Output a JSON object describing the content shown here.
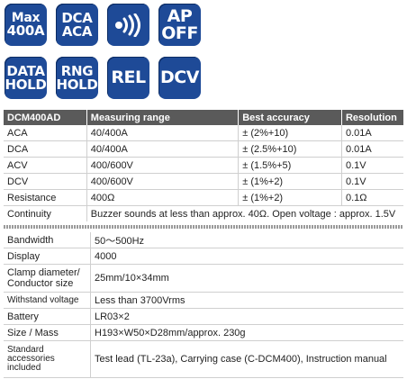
{
  "badges": [
    {
      "lines": [
        "Max",
        "400A"
      ],
      "style": "mixed"
    },
    {
      "lines": [
        "DCA",
        "ACA"
      ],
      "style": "normal"
    },
    {
      "icon": "sound-waves-icon"
    },
    {
      "lines": [
        "AP",
        "OFF"
      ],
      "style": "big"
    },
    {
      "lines": [
        "DATA",
        "HOLD"
      ],
      "style": "normal"
    },
    {
      "lines": [
        "RNG",
        "HOLD"
      ],
      "style": "normal"
    },
    {
      "lines": [
        "REL"
      ],
      "style": "big"
    },
    {
      "lines": [
        "DCV"
      ],
      "style": "big"
    }
  ],
  "colors": {
    "badge_bg": "#1e4a97",
    "header_bg": "#5a5a5a"
  },
  "spec_table": {
    "headers": [
      "DCM400AD",
      "Measuring range",
      "Best accuracy",
      "Resolution"
    ],
    "rows": [
      [
        "ACA",
        "40/400A",
        "± (2%+10)",
        "0.01A"
      ],
      [
        "DCA",
        "40/400A",
        "± (2.5%+10)",
        "0.01A"
      ],
      [
        "ACV",
        "400/600V",
        "± (1.5%+5)",
        "0.1V"
      ],
      [
        "DCV",
        "400/600V",
        "± (1%+2)",
        "0.1V"
      ],
      [
        "Resistance",
        "400Ω",
        "± (1%+2)",
        "0.1Ω"
      ]
    ],
    "continuity": {
      "label": "Continuity",
      "value": "Buzzer sounds at less than approx. 40Ω. Open voltage : approx. 1.5V"
    }
  },
  "general_table": {
    "rows": [
      {
        "label": "Bandwidth",
        "value": "50～500Hz"
      },
      {
        "label": "Display",
        "value": "4000"
      },
      {
        "label": "Clamp diameter/ Conductor size",
        "value": "25mm/10×34mm"
      },
      {
        "label": "Withstand voltage",
        "value": "Less than 3700Vrms"
      },
      {
        "label": "Battery",
        "value": "LR03×2"
      },
      {
        "label": "Size / Mass",
        "value": "H193×W50×D28mm/approx. 230g"
      },
      {
        "label": "Standard accessories included",
        "value": "Test lead (TL-23a), Carrying case (C-DCM400), Instruction manual"
      }
    ]
  }
}
